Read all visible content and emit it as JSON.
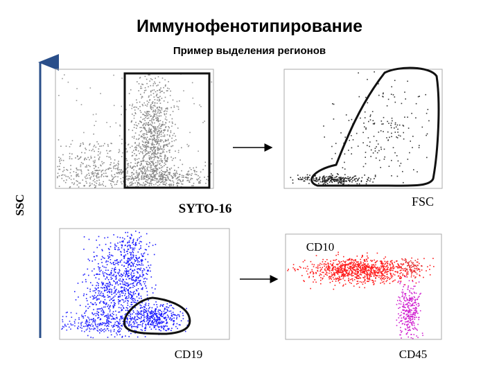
{
  "header": {
    "title": "Иммунофенотипирование",
    "subtitle": "Пример выделения регионов"
  },
  "labels": {
    "ssc": "SSC",
    "syto16": "SYTO-16",
    "fsc": "FSC",
    "cd10": "CD10",
    "cd19": "CD19",
    "cd45": "CD45"
  }
}
